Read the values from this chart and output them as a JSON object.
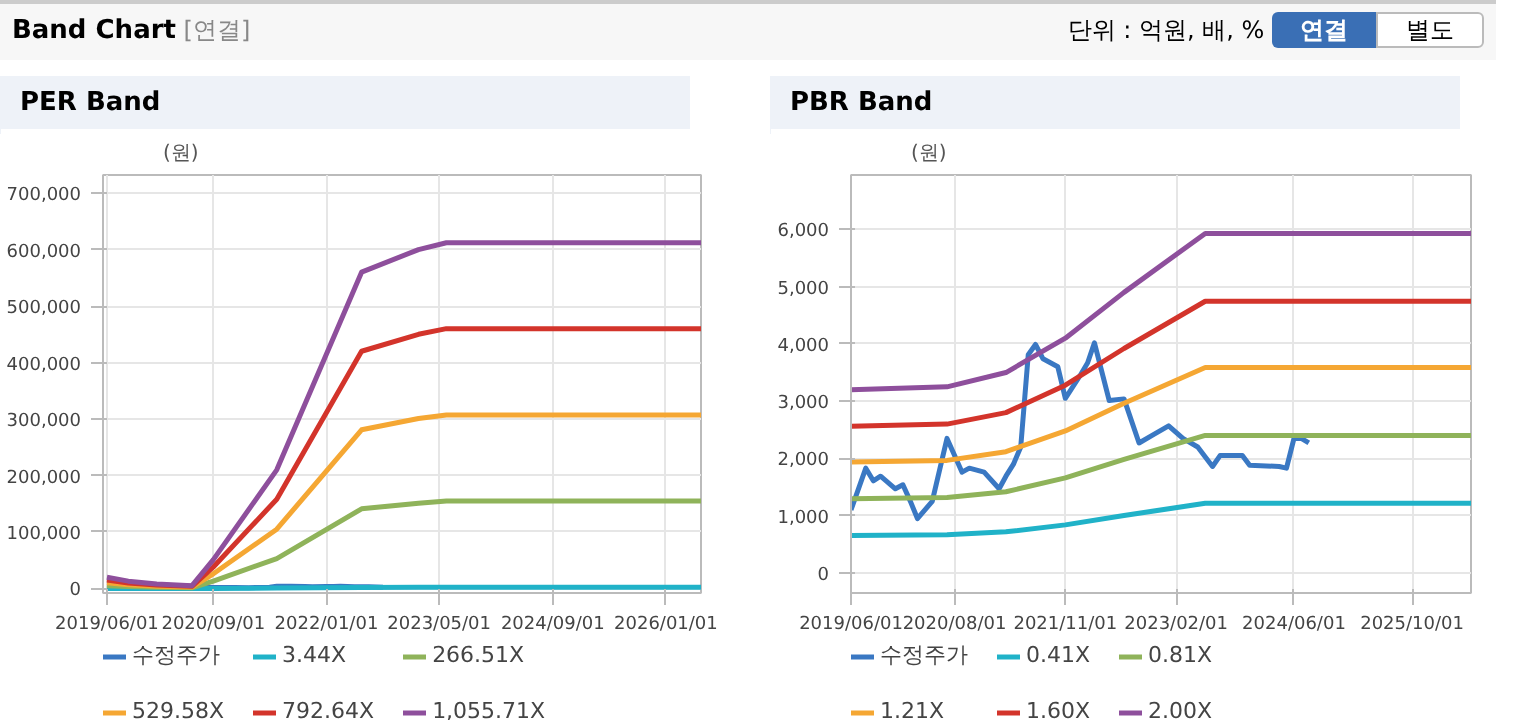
{
  "chart_data": [
    {
      "type": "line",
      "title": "PER Band",
      "ylabel": "(원)",
      "annotations": [
        "Band Chart",
        "[연결]",
        "단위 : 억원, 배, %",
        "연결",
        "별도"
      ],
      "xlim": [
        "2019-05-15",
        "2026-06-01"
      ],
      "ylim": [
        -8000,
        732000
      ],
      "xticks": [
        {
          "value": "2019-06-01",
          "label": "2019/06/01"
        },
        {
          "value": "2020-09-01",
          "label": "2020/09/01"
        },
        {
          "value": "2022-01-01",
          "label": "2022/01/01"
        },
        {
          "value": "2023-05-01",
          "label": "2023/05/01"
        },
        {
          "value": "2024-09-01",
          "label": "2024/09/01"
        },
        {
          "value": "2026-01-01",
          "label": "2026/01/01"
        }
      ],
      "yticks": [
        0,
        {
          "value": 100000,
          "label": "100,000"
        },
        {
          "value": 200000,
          "label": "200,000"
        },
        {
          "value": 300000,
          "label": "300,000"
        },
        {
          "value": 400000,
          "label": "400,000"
        },
        {
          "value": 500000,
          "label": "500,000"
        },
        {
          "value": 600000,
          "label": "600,000"
        },
        {
          "value": 700000,
          "label": "700,000"
        }
      ],
      "grid": true,
      "legend": "bottom",
      "series": [
        {
          "name": "수정주가",
          "color": "#3a78c3",
          "x": [
            "2020-05",
            "2020-07",
            "2020-09",
            "2020-10",
            "2020-12",
            "2021-02",
            "2021-03",
            "2021-04",
            "2021-05",
            "2021-06",
            "2021-07",
            "2021-08",
            "2021-10",
            "2021-11",
            "2022-01",
            "2022-02",
            "2022-03",
            "2022-05",
            "2022-07",
            "2022-09"
          ],
          "values": [
            1250,
            2350,
            1760,
            1830,
            1760,
            1470,
            1690,
            1900,
            2200,
            3810,
            3990,
            3740,
            3600,
            3050,
            3450,
            3670,
            4020,
            3010,
            3040,
            2270
          ]
        },
        {
          "name": "3.44X",
          "color": "#20b2c8",
          "x": [
            "2019-06",
            "2019-09",
            "2020-01",
            "2020-06",
            "2020-09",
            "2021-06",
            "2022-06",
            "2023-02",
            "2023-06",
            "2026-06"
          ],
          "values": [
            65,
            42,
            26,
            16,
            170,
            680,
            1800,
            1960,
            2000,
            2000
          ]
        },
        {
          "name": "266.51X",
          "color": "#8fb35a",
          "x": [
            "2019-06",
            "2019-09",
            "2020-01",
            "2020-06",
            "2020-09",
            "2021-06",
            "2022-06",
            "2023-02",
            "2023-06",
            "2026-06"
          ],
          "values": [
            5000,
            3300,
            2000,
            1300,
            13000,
            53000,
            141000,
            151000,
            155000,
            155000
          ]
        },
        {
          "name": "529.58X",
          "color": "#f5a733",
          "x": [
            "2019-06",
            "2019-09",
            "2020-01",
            "2020-06",
            "2020-09",
            "2021-06",
            "2022-06",
            "2023-02",
            "2023-06",
            "2026-06"
          ],
          "values": [
            10000,
            6500,
            4000,
            2500,
            26000,
            105000,
            281000,
            301000,
            307000,
            307000
          ]
        },
        {
          "name": "792.64X",
          "color": "#d3342b",
          "x": [
            "2019-06",
            "2019-09",
            "2020-01",
            "2020-06",
            "2020-09",
            "2021-06",
            "2022-06",
            "2023-02",
            "2023-06",
            "2026-06"
          ],
          "values": [
            15000,
            9800,
            6000,
            3800,
            38000,
            158000,
            420000,
            450000,
            460000,
            460000
          ]
        },
        {
          "name": "1,055.71X",
          "color": "#8e4f9c",
          "x": [
            "2019-06",
            "2019-09",
            "2020-01",
            "2020-06",
            "2020-09",
            "2021-06",
            "2022-06",
            "2023-02",
            "2023-06",
            "2026-06"
          ],
          "values": [
            20000,
            13000,
            8000,
            5000,
            51000,
            210000,
            560000,
            600000,
            612000,
            612000
          ]
        }
      ]
    },
    {
      "type": "line",
      "title": "PBR Band",
      "ylabel": "(원)",
      "xlim": [
        "2019-06-01",
        "2026-06-01"
      ],
      "ylim": [
        -350,
        6950
      ],
      "xticks": [
        {
          "value": "2019-06-01",
          "label": "2019/06/01"
        },
        {
          "value": "2020-08-01",
          "label": "2020/08/01"
        },
        {
          "value": "2021-11-01",
          "label": "2021/11/01"
        },
        {
          "value": "2023-02-01",
          "label": "2023/02/01"
        },
        {
          "value": "2024-06-01",
          "label": "2024/06/01"
        },
        {
          "value": "2025-10-01",
          "label": "2025/10/01"
        }
      ],
      "yticks": [
        0,
        {
          "value": 1000,
          "label": "1,000"
        },
        {
          "value": 2000,
          "label": "2,000"
        },
        {
          "value": 3000,
          "label": "3,000"
        },
        {
          "value": 4000,
          "label": "4,000"
        },
        {
          "value": 5000,
          "label": "5,000"
        },
        {
          "value": 6000,
          "label": "6,000"
        }
      ],
      "grid": true,
      "legend": "bottom",
      "series": [
        {
          "name": "수정주가",
          "color": "#3a78c3",
          "x": [
            "2019-06",
            "2019-08",
            "2019-09",
            "2019-10",
            "2019-12",
            "2020-01",
            "2020-02",
            "2020-03",
            "2020-05",
            "2020-07",
            "2020-09",
            "2020-10",
            "2020-12",
            "2021-02",
            "2021-03",
            "2021-04",
            "2021-05",
            "2021-06",
            "2021-07",
            "2021-08",
            "2021-10",
            "2021-11",
            "2022-01",
            "2022-02",
            "2022-03",
            "2022-05",
            "2022-07",
            "2022-09",
            "2022-11",
            "2023-01",
            "2023-03",
            "2023-05",
            "2023-07",
            "2023-08",
            "2023-11",
            "2023-12",
            "2024-04",
            "2024-05",
            "2024-06",
            "2024-07",
            "2024-08"
          ],
          "values": [
            1100,
            1830,
            1610,
            1690,
            1470,
            1540,
            1250,
            950,
            1250,
            2350,
            1760,
            1830,
            1760,
            1470,
            1690,
            1900,
            2200,
            3810,
            3990,
            3740,
            3600,
            3050,
            3450,
            3670,
            4020,
            3010,
            3040,
            2270,
            2420,
            2570,
            2350,
            2200,
            1860,
            2050,
            2050,
            1880,
            1860,
            1830,
            2350,
            2350,
            2270
          ]
        },
        {
          "name": "0.41X",
          "color": "#20b2c8",
          "x": [
            "2019-06",
            "2020-07",
            "2021-03",
            "2021-11",
            "2022-07",
            "2023-06",
            "2026-06"
          ],
          "values": [
            656,
            666,
            718,
            840,
            1005,
            1216,
            1216
          ]
        },
        {
          "name": "0.81X",
          "color": "#8fb35a",
          "x": [
            "2019-06",
            "2020-07",
            "2021-03",
            "2021-11",
            "2022-07",
            "2023-06",
            "2026-06"
          ],
          "values": [
            1296,
            1316,
            1418,
            1660,
            1985,
            2402,
            2402
          ]
        },
        {
          "name": "1.21X",
          "color": "#f5a733",
          "x": [
            "2019-06",
            "2020-07",
            "2021-03",
            "2021-11",
            "2022-07",
            "2023-06",
            "2026-06"
          ],
          "values": [
            1936,
            1966,
            2118,
            2480,
            2965,
            3588,
            3588
          ]
        },
        {
          "name": "1.60X",
          "color": "#d3342b",
          "x": [
            "2019-06",
            "2020-07",
            "2021-03",
            "2021-11",
            "2022-07",
            "2023-06",
            "2026-06"
          ],
          "values": [
            2560,
            2600,
            2800,
            3280,
            3920,
            4745,
            4745
          ]
        },
        {
          "name": "2.00X",
          "color": "#8e4f9c",
          "x": [
            "2019-06",
            "2020-07",
            "2021-03",
            "2021-11",
            "2022-07",
            "2023-06",
            "2026-06"
          ],
          "values": [
            3200,
            3250,
            3500,
            4100,
            4900,
            5930,
            5930
          ]
        }
      ]
    }
  ]
}
